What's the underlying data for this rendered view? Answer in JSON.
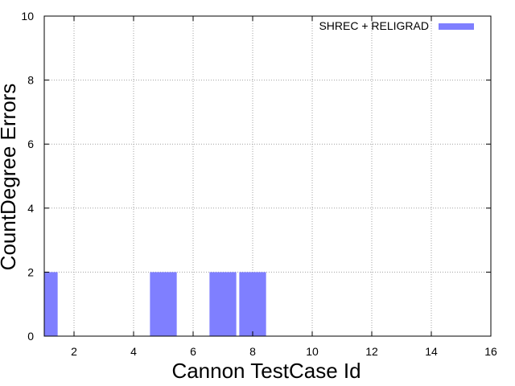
{
  "chart_data": {
    "type": "bar",
    "xlabel": "Cannon TestCase Id",
    "ylabel": "CountDegree Errors",
    "xlim": [
      1,
      16
    ],
    "ylim": [
      0,
      10
    ],
    "xticks": [
      2,
      4,
      6,
      8,
      10,
      12,
      14,
      16
    ],
    "yticks": [
      0,
      2,
      4,
      6,
      8,
      10
    ],
    "grid": true,
    "legend_position": "top-right",
    "bar_width": 0.9,
    "series": [
      {
        "name": "SHREC + RELIGRAD",
        "color": "#7f7fff",
        "x": [
          1,
          5,
          7,
          8
        ],
        "values": [
          2,
          2,
          2,
          2
        ]
      }
    ]
  }
}
